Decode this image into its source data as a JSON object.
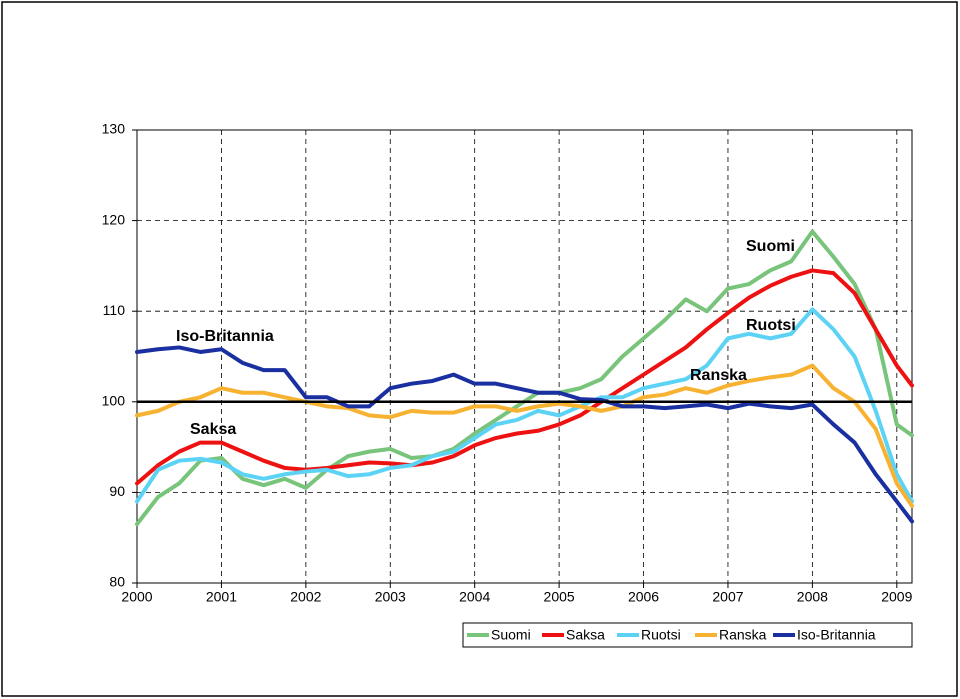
{
  "chart_data": {
    "type": "line",
    "x": [
      2000,
      2000.25,
      2000.5,
      2000.75,
      2001,
      2001.25,
      2001.5,
      2001.75,
      2002,
      2002.25,
      2002.5,
      2002.75,
      2003,
      2003.25,
      2003.5,
      2003.75,
      2004,
      2004.25,
      2004.5,
      2004.75,
      2005,
      2005.25,
      2005.5,
      2005.75,
      2006,
      2006.25,
      2006.5,
      2006.75,
      2007,
      2007.25,
      2007.5,
      2007.75,
      2008,
      2008.25,
      2008.5,
      2008.75,
      2009,
      2009.18
    ],
    "series": [
      {
        "name": "Suomi",
        "color": "#77c47a",
        "values": [
          86.5,
          89.5,
          91,
          93.5,
          93.8,
          91.5,
          90.8,
          91.5,
          90.5,
          92.5,
          94,
          94.5,
          94.8,
          93.8,
          94,
          94.8,
          96.5,
          98,
          99.5,
          101,
          101,
          101.5,
          102.5,
          105,
          107,
          109,
          111.3,
          110,
          112.5,
          113,
          114.5,
          115.5,
          118.8,
          116,
          113,
          108,
          97.5,
          96.3
        ]
      },
      {
        "name": "Saksa",
        "color": "#ee1111",
        "values": [
          91,
          93,
          94.5,
          95.5,
          95.5,
          94.5,
          93.5,
          92.7,
          92.5,
          92.7,
          93,
          93.3,
          93.2,
          93,
          93.3,
          94,
          95.2,
          96,
          96.5,
          96.8,
          97.5,
          98.5,
          100,
          101.5,
          103,
          104.5,
          106,
          108,
          109.8,
          111.5,
          112.8,
          113.8,
          114.5,
          114.2,
          112,
          108,
          104,
          101.8
        ]
      },
      {
        "name": "Ruotsi",
        "color": "#5cd3f5",
        "values": [
          89,
          92.5,
          93.5,
          93.7,
          93.3,
          92,
          91.5,
          92,
          92.3,
          92.5,
          91.8,
          92,
          92.7,
          93,
          94,
          94.5,
          96,
          97.5,
          98,
          99,
          98.5,
          99.5,
          100.5,
          100.5,
          101.5,
          102,
          102.5,
          104,
          107,
          107.5,
          107,
          107.5,
          110.2,
          108,
          105,
          99,
          92,
          89
        ]
      },
      {
        "name": "Ranska",
        "color": "#f7b232",
        "values": [
          98.5,
          99,
          100,
          100.5,
          101.5,
          101,
          101,
          100.5,
          100,
          99.5,
          99.3,
          98.5,
          98.3,
          99,
          98.8,
          98.8,
          99.5,
          99.5,
          99,
          99.5,
          99.8,
          99.5,
          99,
          99.5,
          100.5,
          100.8,
          101.5,
          101,
          101.8,
          102.3,
          102.7,
          103,
          104,
          101.5,
          100,
          97,
          91,
          88.5
        ]
      },
      {
        "name": "Iso-Britannia",
        "color": "#1a2fa0",
        "values": [
          105.5,
          105.8,
          106,
          105.5,
          105.8,
          104.3,
          103.5,
          103.5,
          100.5,
          100.5,
          99.5,
          99.5,
          101.5,
          102,
          102.3,
          103,
          102,
          102,
          101.5,
          101,
          101,
          100.3,
          100.2,
          99.5,
          99.5,
          99.3,
          99.5,
          99.7,
          99.3,
          99.8,
          99.5,
          99.3,
          99.7,
          97.5,
          95.5,
          92,
          89,
          86.8
        ]
      }
    ],
    "annotations": [
      "Suomi",
      "Ruotsi",
      "Ranska",
      "Saksa",
      "Iso-Britannia"
    ],
    "reference_line": 100,
    "xlim": [
      2000,
      2009.18
    ],
    "xticks": [
      2000,
      2001,
      2002,
      2003,
      2004,
      2005,
      2006,
      2007,
      2008,
      2009
    ],
    "ylim": [
      80,
      130
    ],
    "yticks": [
      80,
      90,
      100,
      110,
      120,
      130
    ],
    "grid": true,
    "legend": "bottom-right"
  }
}
